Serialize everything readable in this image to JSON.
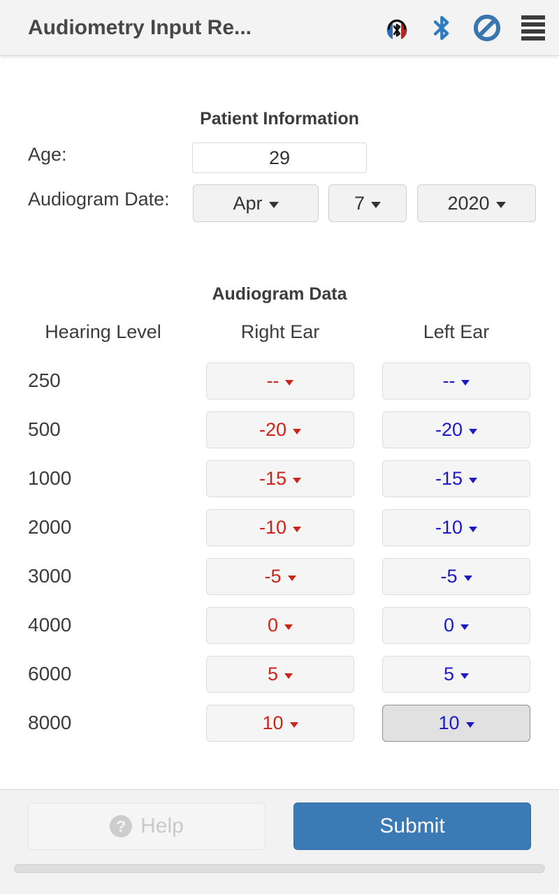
{
  "header": {
    "title": "Audiometry Input Re...",
    "icons": {
      "headset": "headset-bluetooth-icon",
      "bluetooth": "bluetooth-icon",
      "blocked": "blocked-icon",
      "menu": "menu-icon"
    }
  },
  "patient_info": {
    "heading": "Patient Information",
    "age_label": "Age:",
    "age_value": "29",
    "date_label": "Audiogram Date:",
    "date_month": "Apr",
    "date_day": "7",
    "date_year": "2020"
  },
  "audiogram": {
    "heading": "Audiogram Data",
    "columns": {
      "freq": "Hearing Level",
      "right": "Right Ear",
      "left": "Left Ear"
    },
    "rows": [
      {
        "freq": "250",
        "right": "--",
        "left": "--",
        "left_pressed": false
      },
      {
        "freq": "500",
        "right": "-20",
        "left": "-20",
        "left_pressed": false
      },
      {
        "freq": "1000",
        "right": "-15",
        "left": "-15",
        "left_pressed": false
      },
      {
        "freq": "2000",
        "right": "-10",
        "left": "-10",
        "left_pressed": false
      },
      {
        "freq": "3000",
        "right": "-5",
        "left": "-5",
        "left_pressed": false
      },
      {
        "freq": "4000",
        "right": "0",
        "left": "0",
        "left_pressed": false
      },
      {
        "freq": "6000",
        "right": "5",
        "left": "5",
        "left_pressed": false
      },
      {
        "freq": "8000",
        "right": "10",
        "left": "10",
        "left_pressed": true
      }
    ]
  },
  "footer": {
    "help_label": "Help",
    "help_icon_glyph": "?",
    "submit_label": "Submit"
  },
  "colors": {
    "right_ear_text": "#cc2418",
    "left_ear_text": "#1b1ac6",
    "submit_bg": "#3b7ab5",
    "header_bg": "#f3f3f3"
  }
}
